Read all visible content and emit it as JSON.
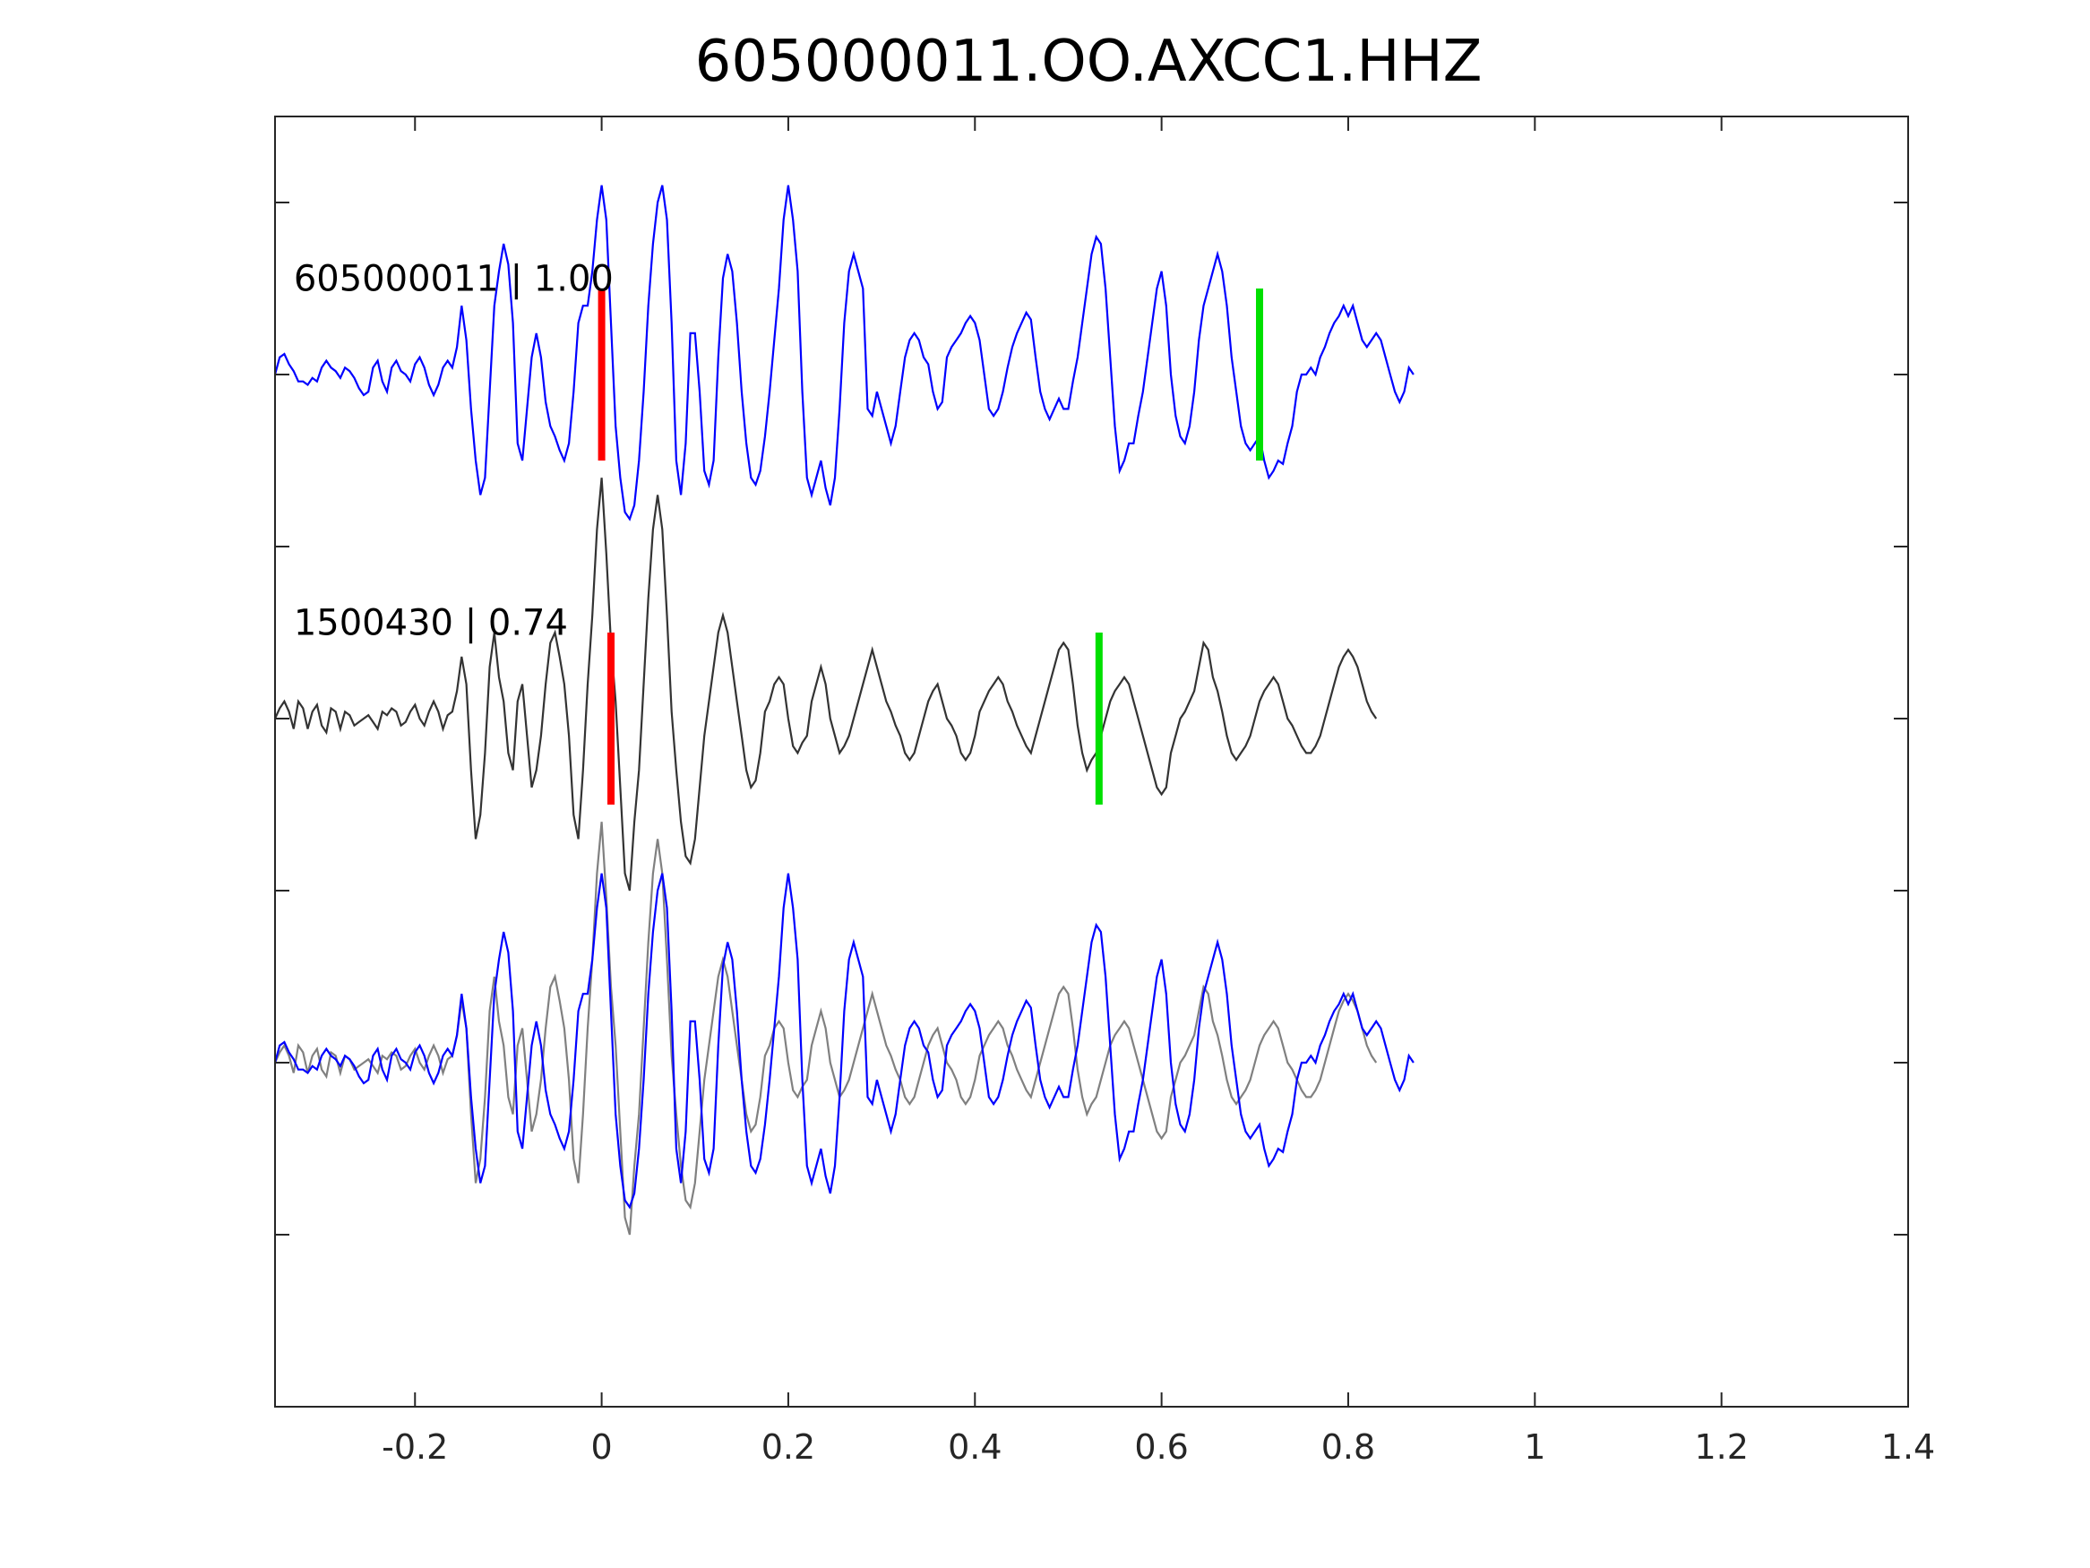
{
  "chart_data": {
    "type": "line",
    "title": "605000011.OO.AXCC1.HHZ",
    "xlabel": "",
    "ylabel": "",
    "xlim": [
      -0.35,
      1.4
    ],
    "ylim": [
      -0.5,
      3.25
    ],
    "x_ticks": [
      -0.2,
      0,
      0.2,
      0.4,
      0.6,
      0.8,
      1,
      1.2,
      1.4
    ],
    "x_tick_labels": [
      "-0.2",
      "0",
      "0.2",
      "0.4",
      "0.6",
      "0.8",
      "1",
      "1.2",
      "1.4"
    ],
    "y_ticks": [
      0,
      0.5,
      1,
      1.5,
      2,
      2.5,
      3
    ],
    "grid": false,
    "legend": "none",
    "colors": {
      "target": "#0000ff",
      "template": "#333333",
      "overlay_template": "#808080",
      "p_pick": "#ff0000",
      "s_pick": "#00e000",
      "axes": "#262626"
    },
    "trace_labels": [
      {
        "text": "605000011 | 1.00",
        "x": -0.33,
        "y": 2.78
      },
      {
        "text": "1500430 | 0.74",
        "x": -0.33,
        "y": 1.78
      }
    ],
    "picks": [
      {
        "trace": "605000011",
        "phase": "P",
        "x": 0.0,
        "y_range": [
          2.25,
          2.75
        ]
      },
      {
        "trace": "605000011",
        "phase": "S",
        "x": 0.705,
        "y_range": [
          2.25,
          2.75
        ]
      },
      {
        "trace": "1500430",
        "phase": "P",
        "x": 0.01,
        "y_range": [
          1.25,
          1.75
        ]
      },
      {
        "trace": "1500430",
        "phase": "S",
        "x": 0.533,
        "y_range": [
          1.25,
          1.75
        ]
      }
    ],
    "series": [
      {
        "name": "605000011",
        "baseline": 2.5,
        "x_start": -0.35,
        "x_step": 0.005,
        "values": [
          0,
          0.05,
          0.06,
          0.03,
          0.01,
          -0.02,
          -0.02,
          -0.03,
          -0.01,
          -0.02,
          0.02,
          0.04,
          0.02,
          0.01,
          -0.01,
          0.02,
          0.01,
          -0.01,
          -0.04,
          -0.06,
          -0.05,
          0.02,
          0.04,
          -0.02,
          -0.05,
          0.02,
          0.04,
          0.01,
          0,
          -0.02,
          0.03,
          0.05,
          0.02,
          -0.03,
          -0.06,
          -0.03,
          0.02,
          0.04,
          0.02,
          0.08,
          0.2,
          0.1,
          -0.1,
          -0.25,
          -0.35,
          -0.3,
          -0.05,
          0.2,
          0.3,
          0.38,
          0.32,
          0.15,
          -0.2,
          -0.25,
          -0.1,
          0.05,
          0.12,
          0.05,
          -0.08,
          -0.15,
          -0.18,
          -0.22,
          -0.25,
          -0.2,
          -0.05,
          0.15,
          0.2,
          0.2,
          0.3,
          0.45,
          0.55,
          0.45,
          0.15,
          -0.15,
          -0.3,
          -0.4,
          -0.42,
          -0.38,
          -0.25,
          -0.05,
          0.2,
          0.38,
          0.5,
          0.55,
          0.45,
          0.15,
          -0.25,
          -0.35,
          -0.2,
          0.12,
          0.12,
          -0.05,
          -0.28,
          -0.32,
          -0.25,
          0.05,
          0.28,
          0.35,
          0.3,
          0.15,
          -0.05,
          -0.2,
          -0.3,
          -0.32,
          -0.28,
          -0.18,
          -0.05,
          0.1,
          0.25,
          0.45,
          0.55,
          0.45,
          0.3,
          -0.05,
          -0.3,
          -0.35,
          -0.3,
          -0.25,
          -0.33,
          -0.38,
          -0.3,
          -0.1,
          0.15,
          0.3,
          0.35,
          0.3,
          0.25,
          -0.1,
          -0.12,
          -0.05,
          -0.1,
          -0.15,
          -0.2,
          -0.15,
          -0.05,
          0.05,
          0.1,
          0.12,
          0.1,
          0.05,
          0.03,
          -0.05,
          -0.1,
          -0.08,
          0.05,
          0.08,
          0.1,
          0.12,
          0.15,
          0.17,
          0.15,
          0.1,
          0,
          -0.1,
          -0.12,
          -0.1,
          -0.05,
          0.02,
          0.08,
          0.12,
          0.15,
          0.18,
          0.16,
          0.05,
          -0.05,
          -0.1,
          -0.13,
          -0.1,
          -0.07,
          -0.1,
          -0.1,
          -0.02,
          0.05,
          0.15,
          0.25,
          0.35,
          0.4,
          0.38,
          0.25,
          0.05,
          -0.15,
          -0.28,
          -0.25,
          -0.2,
          -0.2,
          -0.12,
          -0.05,
          0.05,
          0.15,
          0.25,
          0.3,
          0.2,
          0.0,
          -0.12,
          -0.18,
          -0.2,
          -0.15,
          -0.05,
          0.1,
          0.2,
          0.25,
          0.3,
          0.35,
          0.3,
          0.2,
          0.05,
          -0.05,
          -0.15,
          -0.2,
          -0.22,
          -0.2,
          -0.18,
          -0.25,
          -0.3,
          -0.28,
          -0.25,
          -0.26,
          -0.2,
          -0.15,
          -0.05,
          0.0,
          0.0,
          0.02,
          0.0,
          0.05,
          0.08,
          0.12,
          0.15,
          0.17,
          0.2,
          0.17,
          0.2,
          0.15,
          0.1,
          0.08,
          0.1,
          0.12,
          0.1,
          0.05,
          0.0,
          -0.05,
          -0.08,
          -0.05,
          0.02,
          0.0
        ],
        "color": "#0000ff"
      },
      {
        "name": "1500430",
        "baseline": 1.5,
        "x_start": -0.35,
        "x_step": 0.005,
        "values": [
          0,
          0.03,
          0.05,
          0.02,
          -0.03,
          0.05,
          0.03,
          -0.03,
          0.02,
          0.04,
          -0.02,
          -0.04,
          0.03,
          0.02,
          -0.03,
          0.02,
          0.01,
          -0.02,
          -0.01,
          0,
          0.01,
          -0.01,
          -0.03,
          0.02,
          0.01,
          0.03,
          0.02,
          -0.02,
          -0.01,
          0.02,
          0.04,
          0,
          -0.02,
          0.02,
          0.05,
          0.02,
          -0.03,
          0.01,
          0.02,
          0.08,
          0.18,
          0.1,
          -0.15,
          -0.35,
          -0.28,
          -0.1,
          0.15,
          0.25,
          0.12,
          0.05,
          -0.1,
          -0.15,
          0.05,
          0.1,
          -0.05,
          -0.2,
          -0.15,
          -0.05,
          0.1,
          0.22,
          0.25,
          0.18,
          0.1,
          -0.05,
          -0.28,
          -0.35,
          -0.15,
          0.1,
          0.3,
          0.55,
          0.7,
          0.48,
          0.22,
          0.05,
          -0.2,
          -0.45,
          -0.5,
          -0.3,
          -0.15,
          0.1,
          0.35,
          0.55,
          0.65,
          0.55,
          0.3,
          0.02,
          -0.15,
          -0.3,
          -0.4,
          -0.42,
          -0.35,
          -0.2,
          -0.05,
          0.05,
          0.15,
          0.25,
          0.3,
          0.25,
          0.15,
          0.05,
          -0.05,
          -0.15,
          -0.2,
          -0.18,
          -0.1,
          0.02,
          0.05,
          0.1,
          0.12,
          0.1,
          0.0,
          -0.08,
          -0.1,
          -0.07,
          -0.05,
          0.05,
          0.1,
          0.15,
          0.1,
          0.0,
          -0.05,
          -0.1,
          -0.08,
          -0.05,
          0.0,
          0.05,
          0.1,
          0.15,
          0.2,
          0.15,
          0.1,
          0.05,
          0.02,
          -0.02,
          -0.05,
          -0.1,
          -0.12,
          -0.1,
          -0.05,
          0.0,
          0.05,
          0.08,
          0.1,
          0.05,
          0.0,
          -0.02,
          -0.05,
          -0.1,
          -0.12,
          -0.1,
          -0.05,
          0.02,
          0.05,
          0.08,
          0.1,
          0.12,
          0.1,
          0.05,
          0.02,
          -0.02,
          -0.05,
          -0.08,
          -0.1,
          -0.05,
          0.0,
          0.05,
          0.1,
          0.15,
          0.2,
          0.22,
          0.2,
          0.1,
          -0.02,
          -0.1,
          -0.15,
          -0.12,
          -0.1,
          -0.05,
          0.0,
          0.05,
          0.08,
          0.1,
          0.12,
          0.1,
          0.05,
          0.0,
          -0.05,
          -0.1,
          -0.15,
          -0.2,
          -0.22,
          -0.2,
          -0.1,
          -0.05,
          0.0,
          0.02,
          0.05,
          0.08,
          0.15,
          0.22,
          0.2,
          0.12,
          0.08,
          0.02,
          -0.05,
          -0.1,
          -0.12,
          -0.1,
          -0.08,
          -0.05,
          0.0,
          0.05,
          0.08,
          0.1,
          0.12,
          0.1,
          0.05,
          0.0,
          -0.02,
          -0.05,
          -0.08,
          -0.1,
          -0.1,
          -0.08,
          -0.05,
          0.0,
          0.05,
          0.1,
          0.15,
          0.18,
          0.2,
          0.18,
          0.15,
          0.1,
          0.05,
          0.02,
          0.0
        ],
        "color": "#333333"
      }
    ],
    "overlay_baseline": 0.5
  }
}
